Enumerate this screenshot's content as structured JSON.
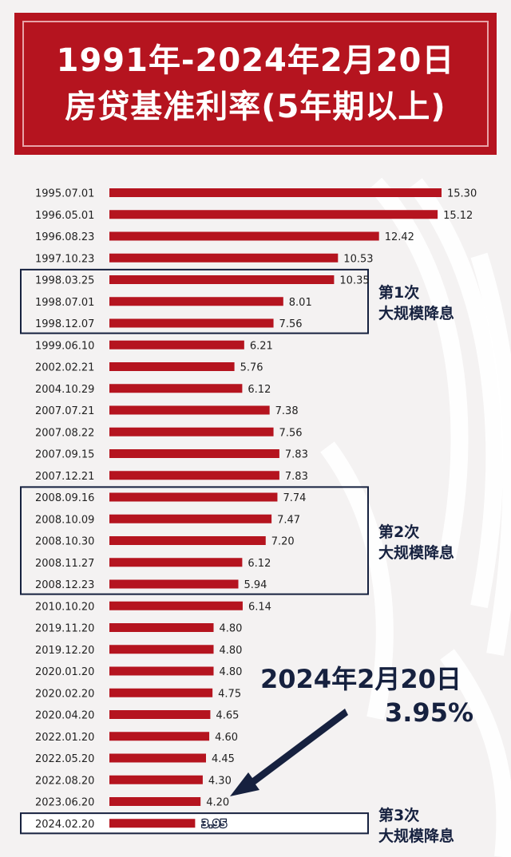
{
  "header": {
    "title_line1": "1991年-2024年2月20日",
    "title_line2": "房贷基准利率(5年期以上)"
  },
  "colors": {
    "bar": "#b5141f",
    "frame": "#16213f",
    "text": "#222222"
  },
  "annotations": {
    "cut1_line1": "第1次",
    "cut1_line2": "大规模降息",
    "cut2_line1": "第2次",
    "cut2_line2": "大规模降息",
    "cut3_line1": "第3次",
    "cut3_line2": "大规模降息",
    "highlight_date": "2024年2月20日",
    "highlight_rate": "3.95%"
  },
  "chart_data": {
    "type": "bar",
    "orientation": "horizontal",
    "title": "1991年-2024年2月20日 房贷基准利率(5年期以上)",
    "xlabel": "",
    "ylabel": "",
    "xlim": [
      0,
      15.3
    ],
    "grid": false,
    "categories": [
      "1995.07.01",
      "1996.05.01",
      "1996.08.23",
      "1997.10.23",
      "1998.03.25",
      "1998.07.01",
      "1998.12.07",
      "1999.06.10",
      "2002.02.21",
      "2004.10.29",
      "2007.07.21",
      "2007.08.22",
      "2007.09.15",
      "2007.12.21",
      "2008.09.16",
      "2008.10.09",
      "2008.10.30",
      "2008.11.27",
      "2008.12.23",
      "2010.10.20",
      "2019.11.20",
      "2019.12.20",
      "2020.01.20",
      "2020.02.20",
      "2020.04.20",
      "2022.01.20",
      "2022.05.20",
      "2022.08.20",
      "2023.06.20",
      "2024.02.20"
    ],
    "values": [
      15.3,
      15.12,
      12.42,
      10.53,
      10.35,
      8.01,
      7.56,
      6.21,
      5.76,
      6.12,
      7.38,
      7.56,
      7.83,
      7.83,
      7.74,
      7.47,
      7.2,
      6.12,
      5.94,
      6.14,
      4.8,
      4.8,
      4.8,
      4.75,
      4.65,
      4.6,
      4.45,
      4.3,
      4.2,
      3.95
    ],
    "value_labels": [
      "15.30",
      "15.12",
      "12.42",
      "10.53",
      "10.35",
      "8.01",
      "7.56",
      "6.21",
      "5.76",
      "6.12",
      "7.38",
      "7.56",
      "7.83",
      "7.83",
      "7.74",
      "7.47",
      "7.20",
      "6.12",
      "5.94",
      "6.14",
      "4.80",
      "4.80",
      "4.80",
      "4.75",
      "4.65",
      "4.60",
      "4.45",
      "4.30",
      "4.20",
      "3.95"
    ],
    "groups": [
      {
        "name": "第1次 大规模降息",
        "from": 4,
        "to": 6
      },
      {
        "name": "第2次 大规模降息",
        "from": 14,
        "to": 18
      },
      {
        "name": "第3次 大规模降息",
        "from": 29,
        "to": 29
      }
    ]
  }
}
